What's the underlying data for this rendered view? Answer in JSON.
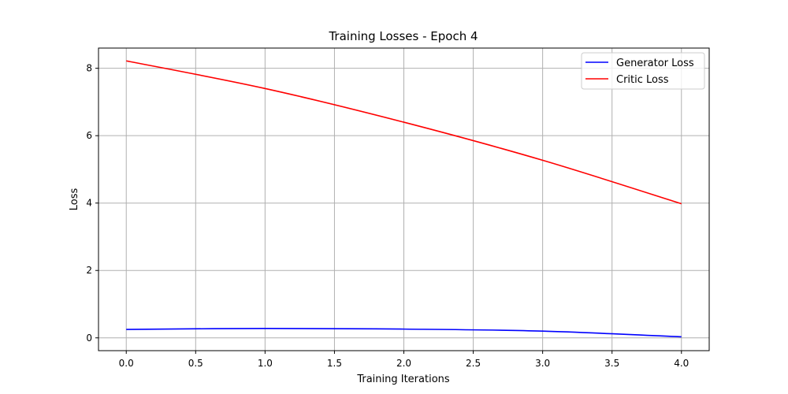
{
  "chart_data": {
    "type": "line",
    "title": "Training Losses - Epoch 4",
    "xlabel": "Training Iterations",
    "ylabel": "Loss",
    "x": [
      0,
      1,
      2,
      3,
      4
    ],
    "series": [
      {
        "name": "Generator Loss",
        "color": "#0000ff",
        "values": [
          0.25,
          0.28,
          0.26,
          0.2,
          0.03
        ]
      },
      {
        "name": "Critic Loss",
        "color": "#ff0000",
        "values": [
          8.22,
          7.4,
          6.4,
          5.27,
          3.98
        ]
      }
    ],
    "xlim": [
      -0.2,
      4.2
    ],
    "ylim": [
      -0.38,
      8.6
    ],
    "xticks": [
      0,
      0.5,
      1,
      1.5,
      2,
      2.5,
      3,
      3.5,
      4
    ],
    "xtick_labels": [
      "0.0",
      "0.5",
      "1.0",
      "1.5",
      "2.0",
      "2.5",
      "3.0",
      "3.5",
      "4.0"
    ],
    "yticks": [
      0,
      2,
      4,
      6,
      8
    ],
    "ytick_labels": [
      "0",
      "2",
      "4",
      "6",
      "8"
    ],
    "grid": true,
    "legend_position": "top-right"
  }
}
